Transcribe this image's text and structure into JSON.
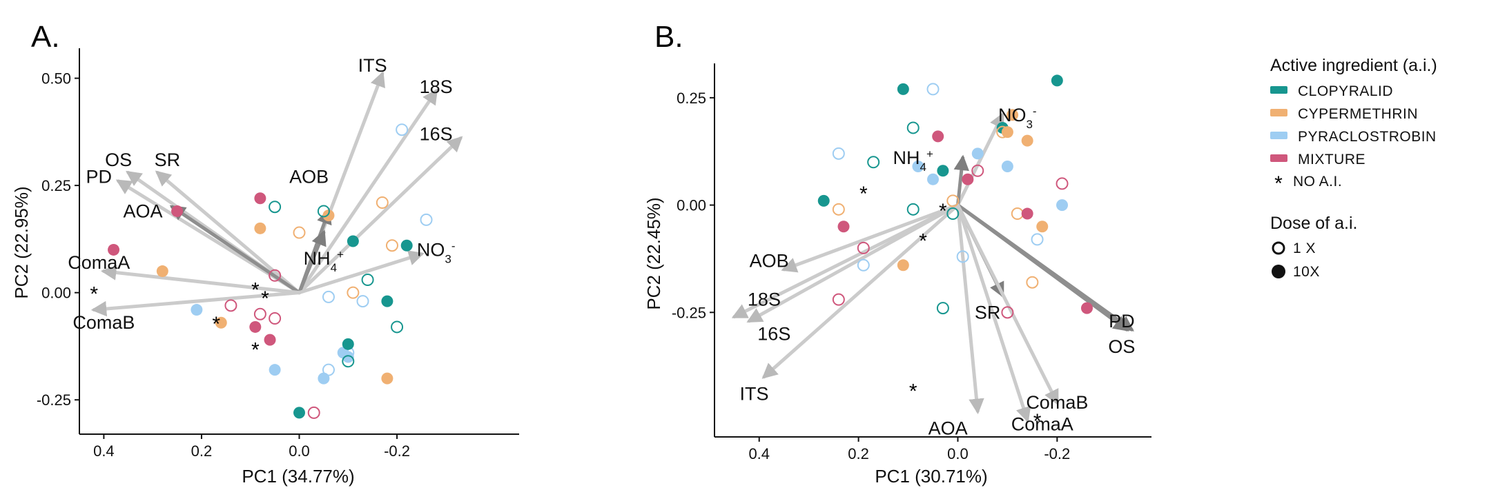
{
  "chart_data": [
    {
      "type": "scatter",
      "panel_label": "A.",
      "xlabel": "PC1 (34.77%)",
      "ylabel": "PC2 (22.95%)",
      "xlim": [
        0.45,
        -0.45
      ],
      "ylim": [
        -0.33,
        0.57
      ],
      "x_reversed": true,
      "x_ticks": [
        0.4,
        0.2,
        0.0,
        -0.2
      ],
      "x_tick_labels": [
        "0.4",
        "0.2",
        "0.0",
        "-0.2"
      ],
      "y_ticks": [
        0.5,
        0.25,
        0.0,
        -0.25
      ],
      "y_tick_labels": [
        "0.50",
        "0.25",
        "0.00",
        "-0.25"
      ],
      "grid": false,
      "loadings": [
        {
          "name": "ITS",
          "x": -0.17,
          "y": 0.51,
          "lx": -0.15,
          "ly": 0.53,
          "shade": "light"
        },
        {
          "name": "18S",
          "x": -0.28,
          "y": 0.47,
          "lx": -0.28,
          "ly": 0.48,
          "shade": "light"
        },
        {
          "name": "16S",
          "x": -0.33,
          "y": 0.36,
          "lx": -0.28,
          "ly": 0.37,
          "shade": "light"
        },
        {
          "name": "AOB",
          "x": -0.06,
          "y": 0.19,
          "lx": -0.02,
          "ly": 0.27,
          "shade": "dark"
        },
        {
          "name": "NH4+",
          "x": -0.05,
          "y": 0.14,
          "lx": -0.05,
          "ly": 0.08,
          "shade": "dark",
          "sub": "4",
          "sup": "+",
          "base": "NH"
        },
        {
          "name": "NO3-",
          "x": -0.25,
          "y": 0.09,
          "lx": -0.28,
          "ly": 0.1,
          "shade": "light",
          "sub": "3",
          "sup": "-",
          "base": "NO"
        },
        {
          "name": "OS",
          "x": 0.35,
          "y": 0.28,
          "lx": 0.37,
          "ly": 0.31,
          "shade": "light"
        },
        {
          "name": "SR",
          "x": 0.29,
          "y": 0.28,
          "lx": 0.27,
          "ly": 0.31,
          "shade": "light"
        },
        {
          "name": "PD",
          "x": 0.37,
          "y": 0.26,
          "lx": 0.41,
          "ly": 0.27,
          "shade": "light"
        },
        {
          "name": "AOA",
          "x": 0.26,
          "y": 0.2,
          "lx": 0.32,
          "ly": 0.19,
          "shade": "dark"
        },
        {
          "name": "ComaA",
          "x": 0.4,
          "y": 0.05,
          "lx": 0.41,
          "ly": 0.07,
          "shade": "light"
        },
        {
          "name": "ComaB",
          "x": 0.42,
          "y": -0.04,
          "lx": 0.4,
          "ly": -0.07,
          "shade": "light"
        }
      ],
      "points": [
        {
          "x": 0.25,
          "y": 0.19,
          "g": "MIXTURE",
          "d": "10X"
        },
        {
          "x": 0.38,
          "y": 0.1,
          "g": "MIXTURE",
          "d": "10X"
        },
        {
          "x": 0.08,
          "y": 0.22,
          "g": "MIXTURE",
          "d": "10X"
        },
        {
          "x": 0.09,
          "y": -0.08,
          "g": "MIXTURE",
          "d": "10X"
        },
        {
          "x": 0.06,
          "y": -0.11,
          "g": "MIXTURE",
          "d": "10X"
        },
        {
          "x": 0.05,
          "y": 0.04,
          "g": "MIXTURE",
          "d": "1X"
        },
        {
          "x": 0.14,
          "y": -0.03,
          "g": "MIXTURE",
          "d": "1X"
        },
        {
          "x": 0.08,
          "y": -0.05,
          "g": "MIXTURE",
          "d": "1X"
        },
        {
          "x": 0.05,
          "y": -0.06,
          "g": "MIXTURE",
          "d": "1X"
        },
        {
          "x": -0.03,
          "y": -0.28,
          "g": "MIXTURE",
          "d": "1X"
        },
        {
          "x": 0.28,
          "y": 0.05,
          "g": "CYPERMETHRIN",
          "d": "10X"
        },
        {
          "x": 0.08,
          "y": 0.15,
          "g": "CYPERMETHRIN",
          "d": "10X"
        },
        {
          "x": -0.06,
          "y": 0.18,
          "g": "CYPERMETHRIN",
          "d": "10X"
        },
        {
          "x": 0.16,
          "y": -0.07,
          "g": "CYPERMETHRIN",
          "d": "10X"
        },
        {
          "x": -0.18,
          "y": -0.2,
          "g": "CYPERMETHRIN",
          "d": "10X"
        },
        {
          "x": 0.0,
          "y": 0.14,
          "g": "CYPERMETHRIN",
          "d": "1X"
        },
        {
          "x": -0.17,
          "y": 0.21,
          "g": "CYPERMETHRIN",
          "d": "1X"
        },
        {
          "x": -0.19,
          "y": 0.11,
          "g": "CYPERMETHRIN",
          "d": "1X"
        },
        {
          "x": -0.11,
          "y": 0.0,
          "g": "CYPERMETHRIN",
          "d": "1X"
        },
        {
          "x": 0.21,
          "y": -0.04,
          "g": "PYRACLOSTROBIN",
          "d": "10X"
        },
        {
          "x": 0.05,
          "y": -0.18,
          "g": "PYRACLOSTROBIN",
          "d": "10X"
        },
        {
          "x": -0.05,
          "y": -0.2,
          "g": "PYRACLOSTROBIN",
          "d": "10X"
        },
        {
          "x": -0.09,
          "y": -0.14,
          "g": "PYRACLOSTROBIN",
          "d": "10X"
        },
        {
          "x": -0.1,
          "y": -0.15,
          "g": "PYRACLOSTROBIN",
          "d": "10X"
        },
        {
          "x": -0.21,
          "y": 0.38,
          "g": "PYRACLOSTROBIN",
          "d": "1X"
        },
        {
          "x": -0.26,
          "y": 0.17,
          "g": "PYRACLOSTROBIN",
          "d": "1X"
        },
        {
          "x": -0.06,
          "y": -0.01,
          "g": "PYRACLOSTROBIN",
          "d": "1X"
        },
        {
          "x": -0.13,
          "y": -0.02,
          "g": "PYRACLOSTROBIN",
          "d": "1X"
        },
        {
          "x": -0.06,
          "y": -0.18,
          "g": "PYRACLOSTROBIN",
          "d": "1X"
        },
        {
          "x": -0.1,
          "y": -0.14,
          "g": "PYRACLOSTROBIN",
          "d": "1X"
        },
        {
          "x": -0.11,
          "y": 0.12,
          "g": "CLOPYRALID",
          "d": "10X"
        },
        {
          "x": -0.22,
          "y": 0.11,
          "g": "CLOPYRALID",
          "d": "10X"
        },
        {
          "x": -0.18,
          "y": -0.02,
          "g": "CLOPYRALID",
          "d": "10X"
        },
        {
          "x": -0.1,
          "y": -0.12,
          "g": "CLOPYRALID",
          "d": "10X"
        },
        {
          "x": 0.0,
          "y": -0.28,
          "g": "CLOPYRALID",
          "d": "10X"
        },
        {
          "x": 0.05,
          "y": 0.2,
          "g": "CLOPYRALID",
          "d": "1X"
        },
        {
          "x": -0.05,
          "y": 0.19,
          "g": "CLOPYRALID",
          "d": "1X"
        },
        {
          "x": -0.14,
          "y": 0.03,
          "g": "CLOPYRALID",
          "d": "1X"
        },
        {
          "x": -0.2,
          "y": -0.08,
          "g": "CLOPYRALID",
          "d": "1X"
        },
        {
          "x": -0.1,
          "y": -0.16,
          "g": "CLOPYRALID",
          "d": "1X"
        }
      ],
      "no_ai": [
        {
          "x": 0.42,
          "y": 0.0
        },
        {
          "x": 0.09,
          "y": 0.01
        },
        {
          "x": 0.07,
          "y": -0.01
        },
        {
          "x": 0.17,
          "y": -0.07
        },
        {
          "x": 0.09,
          "y": -0.13
        }
      ]
    },
    {
      "type": "scatter",
      "panel_label": "B.",
      "xlabel": "PC1 (30.71%)",
      "ylabel": "PC2 (22.45%)",
      "xlim": [
        0.49,
        -0.39
      ],
      "ylim": [
        -0.54,
        0.33
      ],
      "x_reversed": true,
      "x_ticks": [
        0.4,
        0.2,
        0.0,
        -0.2
      ],
      "x_tick_labels": [
        "0.4",
        "0.2",
        "0.0",
        "-0.2"
      ],
      "y_ticks": [
        0.25,
        0.0,
        -0.25
      ],
      "y_tick_labels": [
        "0.25",
        "0.00",
        "-0.25"
      ],
      "grid": false,
      "loadings": [
        {
          "name": "NO3-",
          "x": -0.09,
          "y": 0.21,
          "lx": -0.12,
          "ly": 0.21,
          "shade": "light",
          "sub": "3",
          "sup": "-",
          "base": "NO"
        },
        {
          "name": "NH4+",
          "x": -0.01,
          "y": 0.11,
          "lx": 0.09,
          "ly": 0.11,
          "shade": "dark",
          "sub": "4",
          "sup": "+",
          "base": "NH"
        },
        {
          "name": "AOB",
          "x": 0.35,
          "y": -0.15,
          "lx": 0.38,
          "ly": -0.13,
          "shade": "light"
        },
        {
          "name": "18S",
          "x": 0.45,
          "y": -0.26,
          "lx": 0.39,
          "ly": -0.22,
          "shade": "light"
        },
        {
          "name": "16S",
          "x": 0.42,
          "y": -0.27,
          "lx": 0.37,
          "ly": -0.3,
          "shade": "light"
        },
        {
          "name": "ITS",
          "x": 0.39,
          "y": -0.4,
          "lx": 0.41,
          "ly": -0.44,
          "shade": "light"
        },
        {
          "name": "SR",
          "x": -0.09,
          "y": -0.21,
          "lx": -0.06,
          "ly": -0.25,
          "shade": "dark"
        },
        {
          "name": "PD",
          "x": -0.35,
          "y": -0.29,
          "lx": -0.33,
          "ly": -0.27,
          "shade": "dark"
        },
        {
          "name": "OS",
          "x": -0.34,
          "y": -0.29,
          "lx": -0.33,
          "ly": -0.33,
          "shade": "dark"
        },
        {
          "name": "AOA",
          "x": -0.04,
          "y": -0.48,
          "lx": 0.02,
          "ly": -0.52,
          "shade": "light"
        },
        {
          "name": "ComaB",
          "x": -0.2,
          "y": -0.46,
          "lx": -0.2,
          "ly": -0.46,
          "shade": "light"
        },
        {
          "name": "ComaA",
          "x": -0.14,
          "y": -0.5,
          "lx": -0.17,
          "ly": -0.51,
          "shade": "light"
        }
      ],
      "points": [
        {
          "x": 0.11,
          "y": 0.27,
          "g": "CLOPYRALID",
          "d": "10X"
        },
        {
          "x": -0.2,
          "y": 0.29,
          "g": "CLOPYRALID",
          "d": "10X"
        },
        {
          "x": -0.09,
          "y": 0.18,
          "g": "CLOPYRALID",
          "d": "10X"
        },
        {
          "x": 0.27,
          "y": 0.01,
          "g": "CLOPYRALID",
          "d": "10X"
        },
        {
          "x": 0.03,
          "y": 0.08,
          "g": "CLOPYRALID",
          "d": "10X"
        },
        {
          "x": 0.09,
          "y": 0.18,
          "g": "CLOPYRALID",
          "d": "1X"
        },
        {
          "x": 0.17,
          "y": 0.1,
          "g": "CLOPYRALID",
          "d": "1X"
        },
        {
          "x": 0.09,
          "y": -0.01,
          "g": "CLOPYRALID",
          "d": "1X"
        },
        {
          "x": 0.01,
          "y": -0.02,
          "g": "CLOPYRALID",
          "d": "1X"
        },
        {
          "x": 0.03,
          "y": -0.24,
          "g": "CLOPYRALID",
          "d": "1X"
        },
        {
          "x": -0.11,
          "y": 0.21,
          "g": "CYPERMETHRIN",
          "d": "10X"
        },
        {
          "x": -0.14,
          "y": 0.15,
          "g": "CYPERMETHRIN",
          "d": "10X"
        },
        {
          "x": -0.1,
          "y": 0.17,
          "g": "CYPERMETHRIN",
          "d": "10X"
        },
        {
          "x": -0.17,
          "y": -0.05,
          "g": "CYPERMETHRIN",
          "d": "10X"
        },
        {
          "x": 0.11,
          "y": -0.14,
          "g": "CYPERMETHRIN",
          "d": "10X"
        },
        {
          "x": -0.09,
          "y": 0.17,
          "g": "CYPERMETHRIN",
          "d": "1X"
        },
        {
          "x": 0.24,
          "y": -0.01,
          "g": "CYPERMETHRIN",
          "d": "1X"
        },
        {
          "x": -0.12,
          "y": -0.02,
          "g": "CYPERMETHRIN",
          "d": "1X"
        },
        {
          "x": -0.15,
          "y": -0.18,
          "g": "CYPERMETHRIN",
          "d": "1X"
        },
        {
          "x": 0.01,
          "y": 0.01,
          "g": "CYPERMETHRIN",
          "d": "1X"
        },
        {
          "x": 0.08,
          "y": 0.09,
          "g": "PYRACLOSTROBIN",
          "d": "10X"
        },
        {
          "x": 0.05,
          "y": 0.06,
          "g": "PYRACLOSTROBIN",
          "d": "10X"
        },
        {
          "x": -0.04,
          "y": 0.12,
          "g": "PYRACLOSTROBIN",
          "d": "10X"
        },
        {
          "x": -0.1,
          "y": 0.09,
          "g": "PYRACLOSTROBIN",
          "d": "10X"
        },
        {
          "x": -0.21,
          "y": 0.0,
          "g": "PYRACLOSTROBIN",
          "d": "10X"
        },
        {
          "x": 0.05,
          "y": 0.27,
          "g": "PYRACLOSTROBIN",
          "d": "1X"
        },
        {
          "x": 0.24,
          "y": 0.12,
          "g": "PYRACLOSTROBIN",
          "d": "1X"
        },
        {
          "x": 0.19,
          "y": -0.14,
          "g": "PYRACLOSTROBIN",
          "d": "1X"
        },
        {
          "x": -0.16,
          "y": -0.08,
          "g": "PYRACLOSTROBIN",
          "d": "1X"
        },
        {
          "x": -0.01,
          "y": -0.12,
          "g": "PYRACLOSTROBIN",
          "d": "1X"
        },
        {
          "x": 0.04,
          "y": 0.16,
          "g": "MIXTURE",
          "d": "10X"
        },
        {
          "x": 0.23,
          "y": -0.05,
          "g": "MIXTURE",
          "d": "10X"
        },
        {
          "x": -0.02,
          "y": 0.06,
          "g": "MIXTURE",
          "d": "10X"
        },
        {
          "x": -0.14,
          "y": -0.02,
          "g": "MIXTURE",
          "d": "10X"
        },
        {
          "x": -0.26,
          "y": -0.24,
          "g": "MIXTURE",
          "d": "10X"
        },
        {
          "x": 0.19,
          "y": -0.1,
          "g": "MIXTURE",
          "d": "1X"
        },
        {
          "x": 0.24,
          "y": -0.22,
          "g": "MIXTURE",
          "d": "1X"
        },
        {
          "x": -0.04,
          "y": 0.08,
          "g": "MIXTURE",
          "d": "1X"
        },
        {
          "x": -0.21,
          "y": 0.05,
          "g": "MIXTURE",
          "d": "1X"
        },
        {
          "x": -0.1,
          "y": -0.25,
          "g": "MIXTURE",
          "d": "1X"
        }
      ],
      "no_ai": [
        {
          "x": 0.19,
          "y": 0.03
        },
        {
          "x": 0.03,
          "y": -0.01
        },
        {
          "x": 0.07,
          "y": -0.08
        },
        {
          "x": 0.09,
          "y": -0.43
        },
        {
          "x": -0.16,
          "y": -0.5
        }
      ]
    }
  ],
  "legend": {
    "title": "Active ingredient (a.i.)",
    "items": [
      {
        "key": "CLOPYRALID",
        "label": "CLOPYRALID",
        "color": "#17968f"
      },
      {
        "key": "CYPERMETHRIN",
        "label": "CYPERMETHRIN",
        "color": "#f0b072"
      },
      {
        "key": "PYRACLOSTROBIN",
        "label": "PYRACLOSTROBIN",
        "color": "#9ecdf2"
      },
      {
        "key": "MIXTURE",
        "label": "MIXTURE",
        "color": "#cf577c"
      }
    ],
    "no_ai_label": "NO A.I.",
    "dose_title": "Dose of a.i.",
    "dose_items": [
      "1 X",
      "10X"
    ]
  },
  "colors": {
    "arrow_light": "#cbcbcb",
    "arrow_dark": "#8e8e8e",
    "axis": "#111111"
  }
}
